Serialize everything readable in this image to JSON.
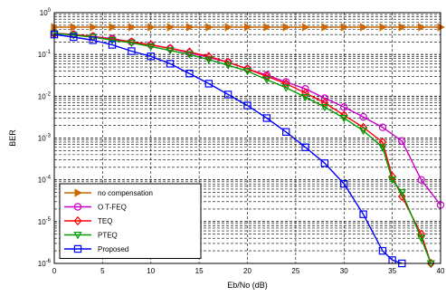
{
  "chart_data": {
    "type": "line",
    "title": "",
    "xlabel": "Eb/No (dB)",
    "ylabel": "BER",
    "xlim": [
      0,
      40
    ],
    "ylim": [
      1e-06,
      1
    ],
    "yscale": "log",
    "grid": "dashed",
    "legend_position": "bottom-left",
    "x_ticks": [
      "0",
      "5",
      "10",
      "15",
      "20",
      "25",
      "30",
      "35",
      "40"
    ],
    "y_tick_exponents": [
      0,
      -1,
      -2,
      -3,
      -4,
      -5,
      -6
    ],
    "series": [
      {
        "name": "no compensation",
        "color": "#cc6600",
        "marker": "triangle-right",
        "x": [
          0,
          2,
          4,
          6,
          8,
          10,
          12,
          14,
          16,
          18,
          20,
          22,
          24,
          26,
          28,
          30,
          32,
          34,
          36,
          38,
          40
        ],
        "y": [
          0.45,
          0.45,
          0.45,
          0.45,
          0.45,
          0.45,
          0.45,
          0.45,
          0.45,
          0.45,
          0.45,
          0.45,
          0.45,
          0.45,
          0.45,
          0.45,
          0.45,
          0.45,
          0.45,
          0.45,
          0.45
        ]
      },
      {
        "name": "O T-FEQ",
        "color": "#cc00cc",
        "marker": "circle",
        "x": [
          0,
          2,
          4,
          6,
          8,
          10,
          12,
          14,
          16,
          18,
          20,
          22,
          24,
          26,
          28,
          30,
          32,
          34,
          36,
          38,
          40
        ],
        "y": [
          0.32,
          0.3,
          0.27,
          0.24,
          0.2,
          0.17,
          0.14,
          0.11,
          0.085,
          0.065,
          0.045,
          0.032,
          0.022,
          0.015,
          0.009,
          0.0055,
          0.0032,
          0.0018,
          0.00085,
          0.0001,
          2.5e-05
        ]
      },
      {
        "name": "TEQ",
        "color": "#ff0000",
        "marker": "diamond",
        "x": [
          0,
          2,
          4,
          6,
          8,
          10,
          12,
          14,
          16,
          18,
          20,
          22,
          24,
          26,
          28,
          30,
          32,
          34,
          35,
          36,
          38,
          39
        ],
        "y": [
          0.32,
          0.3,
          0.27,
          0.23,
          0.2,
          0.17,
          0.14,
          0.115,
          0.09,
          0.065,
          0.045,
          0.03,
          0.02,
          0.012,
          0.007,
          0.0035,
          0.0018,
          0.0008,
          0.00012,
          4e-05,
          5e-06,
          1e-06
        ]
      },
      {
        "name": "PTEQ",
        "color": "#009900",
        "marker": "triangle-down",
        "x": [
          0,
          2,
          4,
          6,
          8,
          10,
          12,
          14,
          16,
          18,
          20,
          22,
          24,
          26,
          28,
          30,
          32,
          34,
          35,
          36,
          38,
          39
        ],
        "y": [
          0.32,
          0.29,
          0.26,
          0.22,
          0.19,
          0.155,
          0.125,
          0.1,
          0.075,
          0.055,
          0.04,
          0.025,
          0.016,
          0.0095,
          0.0055,
          0.003,
          0.0015,
          0.0006,
          0.0001,
          5e-05,
          4e-06,
          1e-06
        ]
      },
      {
        "name": "Proposed",
        "color": "#0000ff",
        "marker": "square",
        "x": [
          0,
          2,
          4,
          6,
          8,
          10,
          12,
          14,
          16,
          18,
          20,
          22,
          24,
          26,
          28,
          30,
          32,
          34,
          35,
          36
        ],
        "y": [
          0.3,
          0.26,
          0.22,
          0.17,
          0.12,
          0.09,
          0.06,
          0.035,
          0.02,
          0.011,
          0.006,
          0.003,
          0.0014,
          0.0006,
          0.00025,
          8e-05,
          1.5e-05,
          2e-06,
          1.2e-06,
          1e-06
        ]
      }
    ]
  }
}
